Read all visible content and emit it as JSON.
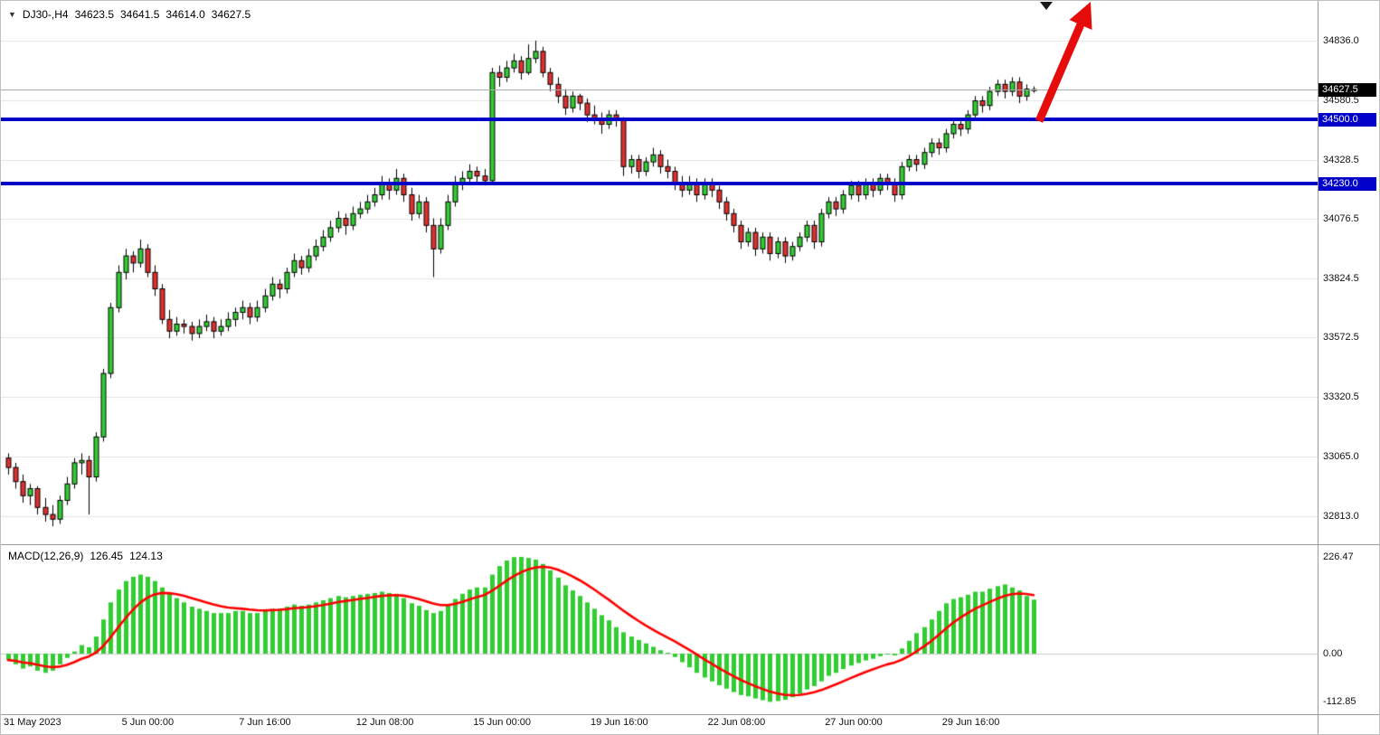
{
  "header": {
    "marker_icon": "▼",
    "symbol": "DJ30-,H4",
    "open": "34623.5",
    "high": "34641.5",
    "low": "34614.0",
    "close": "34627.5"
  },
  "price_axis": {
    "ticks": [
      "34836.0",
      "34580.5",
      "34328.5",
      "34076.5",
      "33824.5",
      "33572.5",
      "33320.5",
      "33065.0",
      "32813.0"
    ],
    "tick_values": [
      34836.0,
      34580.5,
      34328.5,
      34076.5,
      33824.5,
      33572.5,
      33320.5,
      33065.0,
      32813.0
    ],
    "current_price_label": "34627.5",
    "current_price_value": 34627.5
  },
  "levels": [
    {
      "label": "34500.0",
      "value": 34500.0
    },
    {
      "label": "34230.0",
      "value": 34230.0
    }
  ],
  "macd_panel": {
    "title": "MACD(12,26,9)",
    "main_value": "126.45",
    "signal_value": "124.13",
    "ticks": [
      "226.47",
      "0.00",
      "-112.85"
    ],
    "tick_values": [
      226.47,
      0,
      -112.85
    ]
  },
  "time_axis": {
    "labels": [
      "31 May 2023",
      "5 Jun 00:00",
      "7 Jun 16:00",
      "12 Jun 08:00",
      "15 Jun 00:00",
      "19 Jun 16:00",
      "22 Jun 08:00",
      "27 Jun 00:00",
      "29 Jun 16:00"
    ],
    "indices": [
      0,
      16,
      32,
      48,
      64,
      80,
      96,
      112,
      128
    ]
  },
  "colors": {
    "up": "#32CD32",
    "down": "#E03030",
    "level_line": "#0000C8",
    "current_tag": "#000000",
    "signal_line": "#FF0000",
    "histogram": "#32CD32",
    "arrow": "#E60C0C",
    "grid": "#E4E4E4"
  },
  "chart_data": [
    {
      "type": "candlestick",
      "name": "DJ30- H4 price",
      "ylim": [
        32694,
        35005
      ],
      "x_labels": [
        "31 May 2023",
        "5 Jun 00:00",
        "7 Jun 16:00",
        "12 Jun 08:00",
        "15 Jun 00:00",
        "19 Jun 16:00",
        "22 Jun 08:00",
        "27 Jun 00:00",
        "29 Jun 16:00"
      ],
      "x_label_indices": [
        0,
        16,
        32,
        48,
        64,
        80,
        96,
        112,
        128
      ],
      "ohlc": [
        [
          33060,
          33080,
          32990,
          33020
        ],
        [
          33020,
          33040,
          32930,
          32960
        ],
        [
          32960,
          32990,
          32870,
          32900
        ],
        [
          32900,
          32950,
          32860,
          32930
        ],
        [
          32930,
          32940,
          32820,
          32850
        ],
        [
          32850,
          32890,
          32790,
          32820
        ],
        [
          32820,
          32860,
          32770,
          32800
        ],
        [
          32800,
          32900,
          32780,
          32880
        ],
        [
          32880,
          32980,
          32860,
          32950
        ],
        [
          32950,
          33060,
          32930,
          33040
        ],
        [
          33040,
          33080,
          32990,
          33050
        ],
        [
          33050,
          33070,
          32820,
          32980
        ],
        [
          32980,
          33170,
          32960,
          33150
        ],
        [
          33150,
          33440,
          33130,
          33420
        ],
        [
          33420,
          33720,
          33400,
          33700
        ],
        [
          33700,
          33880,
          33680,
          33850
        ],
        [
          33850,
          33950,
          33820,
          33920
        ],
        [
          33920,
          33940,
          33850,
          33890
        ],
        [
          33890,
          33990,
          33870,
          33950
        ],
        [
          33950,
          33970,
          33830,
          33850
        ],
        [
          33850,
          33880,
          33750,
          33780
        ],
        [
          33780,
          33800,
          33630,
          33650
        ],
        [
          33650,
          33690,
          33570,
          33600
        ],
        [
          33600,
          33660,
          33580,
          33630
        ],
        [
          33630,
          33650,
          33590,
          33620
        ],
        [
          33620,
          33640,
          33560,
          33590
        ],
        [
          33590,
          33650,
          33570,
          33620
        ],
        [
          33620,
          33670,
          33600,
          33640
        ],
        [
          33640,
          33660,
          33570,
          33600
        ],
        [
          33600,
          33650,
          33580,
          33620
        ],
        [
          33620,
          33680,
          33600,
          33650
        ],
        [
          33650,
          33700,
          33620,
          33680
        ],
        [
          33680,
          33730,
          33650,
          33700
        ],
        [
          33700,
          33720,
          33630,
          33660
        ],
        [
          33660,
          33730,
          33640,
          33700
        ],
        [
          33700,
          33780,
          33680,
          33750
        ],
        [
          33750,
          33830,
          33730,
          33800
        ],
        [
          33800,
          33820,
          33740,
          33780
        ],
        [
          33780,
          33870,
          33760,
          33850
        ],
        [
          33850,
          33930,
          33830,
          33900
        ],
        [
          33900,
          33920,
          33840,
          33870
        ],
        [
          33870,
          33950,
          33850,
          33920
        ],
        [
          33920,
          33990,
          33900,
          33960
        ],
        [
          33960,
          34030,
          33940,
          34000
        ],
        [
          34000,
          34070,
          33980,
          34040
        ],
        [
          34040,
          34110,
          34020,
          34080
        ],
        [
          34080,
          34100,
          34010,
          34050
        ],
        [
          34050,
          34130,
          34030,
          34100
        ],
        [
          34100,
          34150,
          34080,
          34120
        ],
        [
          34120,
          34180,
          34100,
          34150
        ],
        [
          34150,
          34210,
          34130,
          34180
        ],
        [
          34180,
          34260,
          34160,
          34230
        ],
        [
          34230,
          34250,
          34160,
          34200
        ],
        [
          34200,
          34290,
          34180,
          34250
        ],
        [
          34250,
          34270,
          34150,
          34180
        ],
        [
          34180,
          34210,
          34070,
          34100
        ],
        [
          34100,
          34180,
          34080,
          34150
        ],
        [
          34150,
          34170,
          34020,
          34050
        ],
        [
          34050,
          34080,
          33830,
          33950
        ],
        [
          33950,
          34080,
          33930,
          34050
        ],
        [
          34050,
          34180,
          34030,
          34150
        ],
        [
          34150,
          34260,
          34130,
          34230
        ],
        [
          34230,
          34280,
          34200,
          34250
        ],
        [
          34250,
          34310,
          34230,
          34280
        ],
        [
          34280,
          34300,
          34230,
          34260
        ],
        [
          34260,
          34290,
          34220,
          34240
        ],
        [
          34240,
          34720,
          34230,
          34700
        ],
        [
          34700,
          34730,
          34640,
          34680
        ],
        [
          34680,
          34750,
          34660,
          34720
        ],
        [
          34720,
          34780,
          34700,
          34750
        ],
        [
          34750,
          34770,
          34670,
          34700
        ],
        [
          34700,
          34820,
          34690,
          34760
        ],
        [
          34760,
          34836,
          34740,
          34790
        ],
        [
          34790,
          34810,
          34680,
          34700
        ],
        [
          34700,
          34720,
          34620,
          34650
        ],
        [
          34650,
          34680,
          34570,
          34600
        ],
        [
          34600,
          34630,
          34520,
          34550
        ],
        [
          34550,
          34620,
          34530,
          34600
        ],
        [
          34600,
          34610,
          34540,
          34570
        ],
        [
          34570,
          34590,
          34490,
          34520
        ],
        [
          34520,
          34560,
          34480,
          34500
        ],
        [
          34500,
          34530,
          34440,
          34480
        ],
        [
          34480,
          34540,
          34460,
          34520
        ],
        [
          34520,
          34540,
          34470,
          34500
        ],
        [
          34500,
          34510,
          34260,
          34300
        ],
        [
          34300,
          34350,
          34270,
          34330
        ],
        [
          34330,
          34350,
          34250,
          34280
        ],
        [
          34280,
          34340,
          34260,
          34320
        ],
        [
          34320,
          34380,
          34300,
          34350
        ],
        [
          34350,
          34370,
          34270,
          34300
        ],
        [
          34300,
          34330,
          34250,
          34280
        ],
        [
          34280,
          34300,
          34200,
          34230
        ],
        [
          34230,
          34260,
          34170,
          34200
        ],
        [
          34200,
          34260,
          34180,
          34230
        ],
        [
          34230,
          34250,
          34150,
          34180
        ],
        [
          34180,
          34250,
          34160,
          34230
        ],
        [
          34230,
          34250,
          34170,
          34200
        ],
        [
          34200,
          34220,
          34120,
          34150
        ],
        [
          34150,
          34170,
          34070,
          34100
        ],
        [
          34100,
          34120,
          34020,
          34050
        ],
        [
          34050,
          34070,
          33950,
          33980
        ],
        [
          33980,
          34040,
          33960,
          34020
        ],
        [
          34020,
          34040,
          33920,
          33950
        ],
        [
          33950,
          34020,
          33930,
          34000
        ],
        [
          34000,
          34020,
          33900,
          33930
        ],
        [
          33930,
          34000,
          33910,
          33980
        ],
        [
          33980,
          34000,
          33890,
          33920
        ],
        [
          33920,
          33980,
          33900,
          33960
        ],
        [
          33960,
          34020,
          33940,
          34000
        ],
        [
          34000,
          34070,
          33980,
          34050
        ],
        [
          34050,
          34070,
          33950,
          33980
        ],
        [
          33980,
          34120,
          33960,
          34100
        ],
        [
          34100,
          34170,
          34080,
          34150
        ],
        [
          34150,
          34170,
          34090,
          34120
        ],
        [
          34120,
          34200,
          34100,
          34180
        ],
        [
          34180,
          34240,
          34160,
          34220
        ],
        [
          34220,
          34240,
          34150,
          34180
        ],
        [
          34180,
          34250,
          34160,
          34230
        ],
        [
          34230,
          34250,
          34170,
          34200
        ],
        [
          34200,
          34270,
          34180,
          34250
        ],
        [
          34250,
          34270,
          34200,
          34230
        ],
        [
          34230,
          34250,
          34150,
          34180
        ],
        [
          34180,
          34320,
          34160,
          34300
        ],
        [
          34300,
          34350,
          34280,
          34330
        ],
        [
          34330,
          34350,
          34280,
          34310
        ],
        [
          34310,
          34380,
          34290,
          34360
        ],
        [
          34360,
          34420,
          34340,
          34400
        ],
        [
          34400,
          34420,
          34350,
          34380
        ],
        [
          34380,
          34460,
          34360,
          34440
        ],
        [
          34440,
          34500,
          34420,
          34480
        ],
        [
          34480,
          34500,
          34430,
          34460
        ],
        [
          34460,
          34540,
          34440,
          34520
        ],
        [
          34520,
          34600,
          34500,
          34580
        ],
        [
          34580,
          34600,
          34530,
          34560
        ],
        [
          34560,
          34640,
          34540,
          34620
        ],
        [
          34620,
          34670,
          34600,
          34650
        ],
        [
          34650,
          34670,
          34590,
          34620
        ],
        [
          34620,
          34680,
          34600,
          34660
        ],
        [
          34660,
          34680,
          34570,
          34600
        ],
        [
          34600,
          34650,
          34580,
          34630
        ],
        [
          34623.5,
          34641.5,
          34614.0,
          34627.5
        ]
      ]
    },
    {
      "type": "bar",
      "name": "MACD(12,26,9) histogram",
      "ylim": [
        -112.85,
        226.47
      ],
      "values": [
        -15,
        -25,
        -35,
        -30,
        -40,
        -45,
        -40,
        -25,
        -10,
        5,
        20,
        15,
        40,
        80,
        120,
        150,
        170,
        180,
        185,
        180,
        170,
        155,
        140,
        130,
        120,
        110,
        105,
        100,
        95,
        95,
        95,
        100,
        100,
        95,
        95,
        100,
        105,
        105,
        110,
        115,
        112,
        115,
        120,
        125,
        130,
        135,
        132,
        135,
        138,
        140,
        142,
        145,
        142,
        140,
        130,
        118,
        112,
        102,
        95,
        100,
        112,
        128,
        140,
        150,
        155,
        155,
        185,
        205,
        218,
        226,
        226.47,
        224,
        220,
        210,
        195,
        178,
        160,
        148,
        135,
        120,
        105,
        90,
        78,
        62,
        50,
        40,
        32,
        24,
        16,
        8,
        2,
        -8,
        -20,
        -32,
        -45,
        -56,
        -65,
        -74,
        -82,
        -90,
        -97,
        -100,
        -105,
        -109,
        -112.85,
        -111,
        -108,
        -102,
        -94,
        -84,
        -76,
        -65,
        -52,
        -45,
        -36,
        -28,
        -22,
        -16,
        -12,
        -6,
        -2,
        -4,
        12,
        30,
        48,
        62,
        80,
        100,
        118,
        128,
        132,
        138,
        145,
        145,
        152,
        158,
        162,
        155,
        148,
        135,
        126.45
      ]
    }
  ]
}
